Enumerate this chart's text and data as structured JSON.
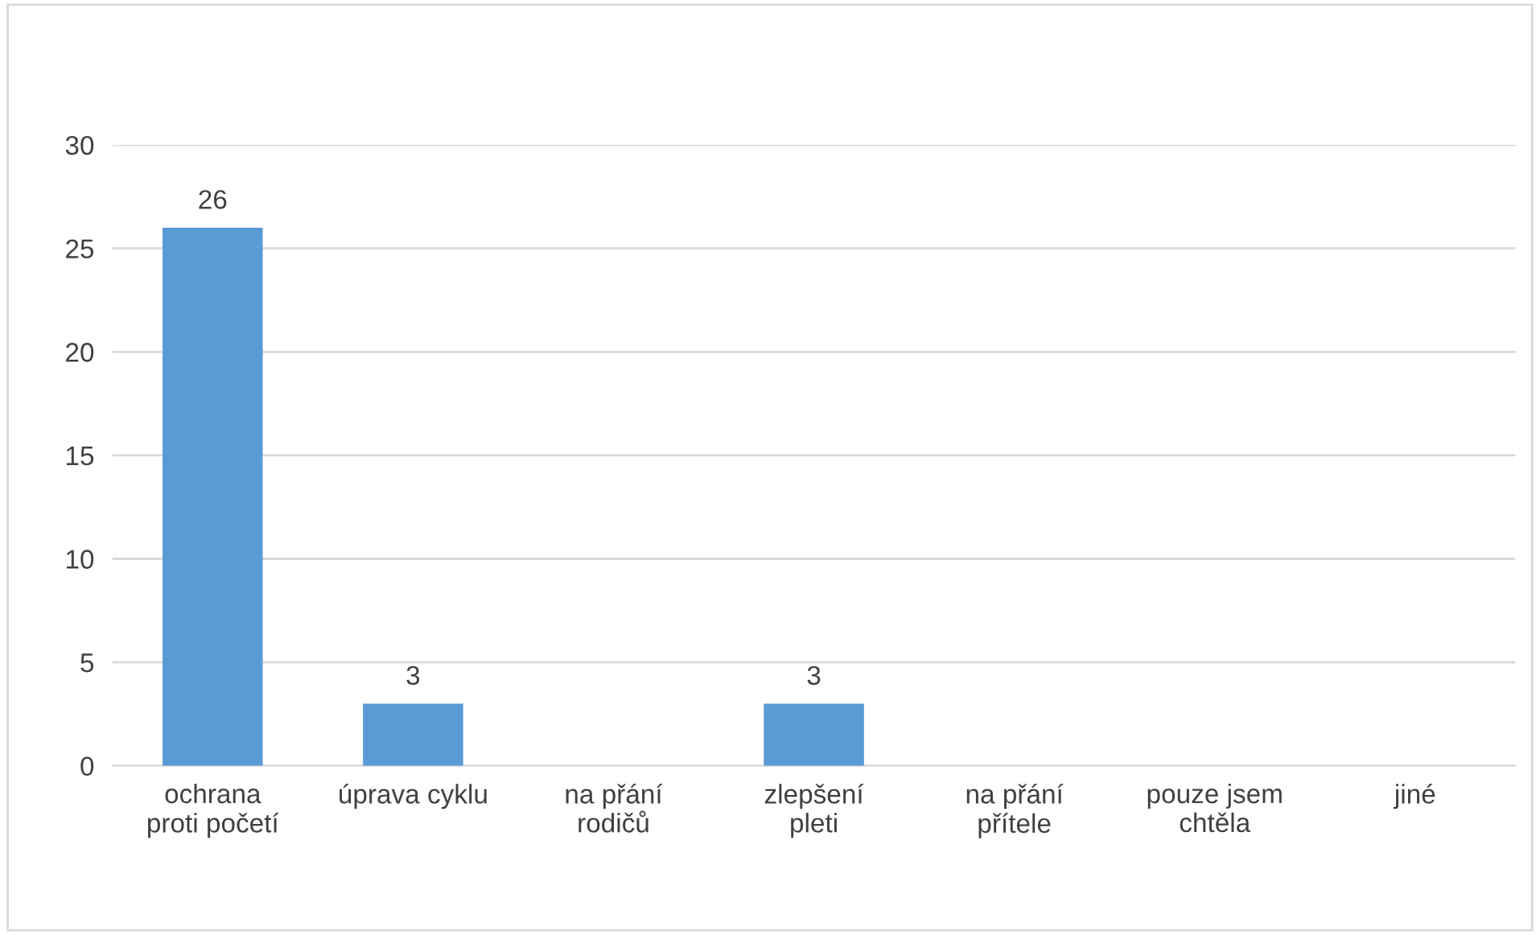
{
  "chart_data": {
    "type": "bar",
    "categories": [
      "ochrana\nproti početí",
      "úprava cyklu",
      "na přání\nrodičů",
      "zlepšení\npleti",
      "na přání\npřítele",
      "pouze jsem\nchtěla",
      "jiné"
    ],
    "values": [
      26,
      3,
      0,
      3,
      0,
      0,
      0
    ],
    "value_labels": [
      "26",
      "3",
      null,
      "3",
      null,
      null,
      null
    ],
    "color": "#5b9bd5",
    "ylim": [
      0,
      30
    ],
    "yticks": [
      0,
      5,
      10,
      15,
      20,
      25,
      30
    ],
    "grid": "y"
  }
}
